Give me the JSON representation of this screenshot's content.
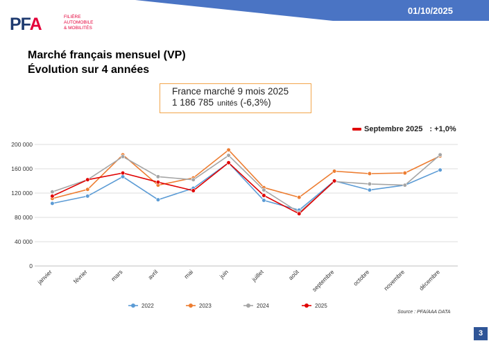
{
  "header": {
    "date": "01/10/2025",
    "band_color": "#4a74c4",
    "logo": {
      "letters_1": "PF",
      "letters_2": "A",
      "tagline": [
        "FILIÈRE",
        "AUTOMOBILE",
        "& MOBILITÉS"
      ]
    }
  },
  "title": {
    "line1": "Marché français mensuel (VP)",
    "line2": "Évolution sur 4 années"
  },
  "kpi": {
    "label": "France marché 9 mois 2025",
    "value": "1 186 785",
    "unit": "unités",
    "change": "(-6,3%)",
    "border_color": "#f2a54a"
  },
  "september_note": {
    "label": "Septembre 2025",
    "value": ": +1,0%",
    "color": "#e00000"
  },
  "source": "Source : PFA/AAA DATA",
  "page_number": "3",
  "chart_data": {
    "type": "line",
    "categories": [
      "janvier",
      "février",
      "mars",
      "avril",
      "mai",
      "juin",
      "juillet",
      "août",
      "septembre",
      "octobre",
      "novembre",
      "décembre"
    ],
    "ylim": [
      0,
      200000
    ],
    "yticks": [
      0,
      40000,
      80000,
      120000,
      160000,
      200000
    ],
    "ytick_labels": [
      "0",
      "40 000",
      "80 000",
      "120 000",
      "160 000",
      "200 000"
    ],
    "grid": true,
    "legend_position": "bottom",
    "series": [
      {
        "name": "2022",
        "color": "#5b9bd5",
        "values": [
          103000,
          115000,
          147000,
          109000,
          128000,
          170000,
          108000,
          92000,
          140000,
          125000,
          133000,
          158000
        ]
      },
      {
        "name": "2023",
        "color": "#ed7d31",
        "values": [
          111000,
          126000,
          183000,
          133000,
          145000,
          191000,
          129000,
          113000,
          156000,
          152000,
          153000,
          181000
        ]
      },
      {
        "name": "2024",
        "color": "#a5a5a5",
        "values": [
          122000,
          142000,
          180000,
          147000,
          142000,
          182000,
          125000,
          88000,
          139000,
          135000,
          133000,
          183000
        ]
      },
      {
        "name": "2025",
        "color": "#e00000",
        "values": [
          115000,
          142000,
          153000,
          138000,
          124000,
          170000,
          116000,
          86000,
          140000,
          null,
          null,
          null
        ]
      }
    ]
  }
}
